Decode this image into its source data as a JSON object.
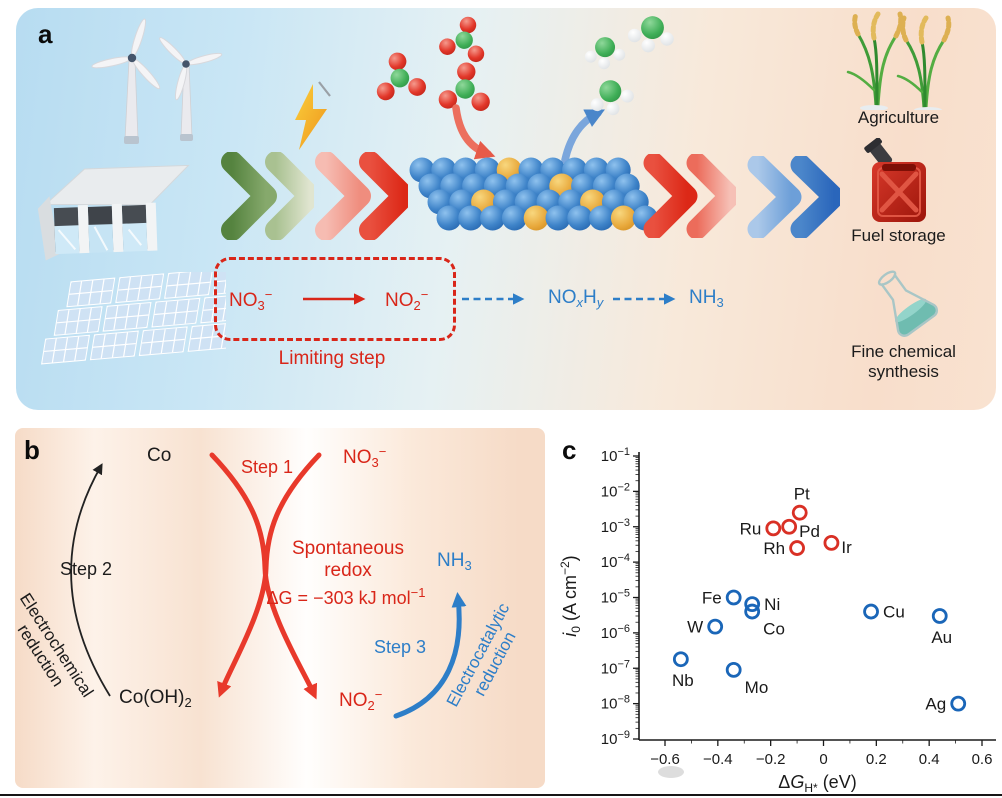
{
  "figure": {
    "panel_a": {
      "label": "a",
      "limiting_step": "Limiting step",
      "no3": {
        "base": "NO",
        "sub": "3",
        "sup": "−"
      },
      "no2": {
        "base": "NO",
        "sub": "2",
        "sup": "−"
      },
      "noxhy": {
        "base1": "NO",
        "sub1": "x",
        "base2": "H",
        "sub2": "y"
      },
      "nh3": {
        "base": "NH",
        "sub": "3"
      },
      "applications": [
        {
          "label": "Agriculture"
        },
        {
          "label": "Fuel storage"
        },
        {
          "label": "Fine chemical synthesis"
        }
      ]
    },
    "panel_b": {
      "label": "b",
      "co": "Co",
      "co_oh2": {
        "base": "Co(OH)",
        "sub": "2"
      },
      "step1": "Step 1",
      "step2": "Step 2",
      "step3": "Step 3",
      "electrochemical_line1": "Electrochemical",
      "electrochemical_line2": "reduction",
      "electrocatalytic_line1": "Electrocatalytic",
      "electrocatalytic_line2": "reduction",
      "spontaneous_line1": "Spontaneous",
      "spontaneous_line2": "redox",
      "delta_g": {
        "base": "ΔG = −303 kJ mol",
        "sup": "−1"
      },
      "no3": {
        "base": "NO",
        "sub": "3",
        "sup": "−"
      },
      "no2": {
        "base": "NO",
        "sub": "2",
        "sup": "−"
      },
      "nh3": {
        "base": "NH",
        "sub": "3"
      }
    },
    "panel_c": {
      "label": "c"
    }
  },
  "chart_data": {
    "type": "scatter",
    "title": "",
    "xlabel": "ΔG_H* (eV)",
    "ylabel": "i_0 (A cm^−2)",
    "xlabel_parts": {
      "delta": "Δ",
      "g": "G",
      "sub": "H*",
      "unit": " (eV)"
    },
    "ylabel_parts": {
      "i": "i",
      "sub": "0",
      "unit_pre": " (A cm",
      "sup": "−2",
      "unit_post": ")"
    },
    "xlim": [
      -0.7,
      0.65
    ],
    "x_ticks": [
      -0.6,
      -0.4,
      -0.2,
      0,
      0.2,
      0.4,
      0.6
    ],
    "x_tick_labels": [
      "−0.6",
      "−0.4",
      "−0.2",
      "0",
      "0.2",
      "0.4",
      "0.6"
    ],
    "y_tick_exponents": [
      -1,
      -2,
      -3,
      -4,
      -5,
      -6,
      -7,
      -8,
      -9
    ],
    "grid": false,
    "legend": "none",
    "series": [
      {
        "name": "red-circles",
        "color": "#d93025",
        "points": [
          {
            "label": "Ru",
            "x": -0.19,
            "y": 0.0009,
            "label_pos": "left"
          },
          {
            "label": "Pd",
            "x": -0.13,
            "y": 0.001,
            "label_pos": "right-low"
          },
          {
            "label": "Pt",
            "x": -0.09,
            "y": 0.0025,
            "label_pos": "top"
          },
          {
            "label": "Rh",
            "x": -0.1,
            "y": 0.00025,
            "label_pos": "left"
          },
          {
            "label": "Ir",
            "x": 0.03,
            "y": 0.00035,
            "label_pos": "right-low"
          }
        ]
      },
      {
        "name": "blue-circles",
        "color": "#1a66b8",
        "points": [
          {
            "label": "Fe",
            "x": -0.34,
            "y": 1e-05,
            "label_pos": "left"
          },
          {
            "label": "Ni",
            "x": -0.27,
            "y": 6.5e-06,
            "label_pos": "right"
          },
          {
            "label": "Co",
            "x": -0.27,
            "y": 4e-06,
            "label_pos": "bottom-right"
          },
          {
            "label": "W",
            "x": -0.41,
            "y": 1.5e-06,
            "label_pos": "left"
          },
          {
            "label": "Cu",
            "x": 0.18,
            "y": 4e-06,
            "label_pos": "right"
          },
          {
            "label": "Au",
            "x": 0.44,
            "y": 3e-06,
            "label_pos": "bottom"
          },
          {
            "label": "Nb",
            "x": -0.54,
            "y": 1.8e-07,
            "label_pos": "bottom"
          },
          {
            "label": "Mo",
            "x": -0.34,
            "y": 9e-08,
            "label_pos": "bottom-right"
          },
          {
            "label": "Ag",
            "x": 0.51,
            "y": 1e-08,
            "label_pos": "left"
          }
        ]
      }
    ]
  },
  "colors": {
    "accent_red": "#d92619",
    "accent_blue": "#2d7ec8",
    "marker_red": "#d93025",
    "marker_blue": "#1a66b8"
  }
}
